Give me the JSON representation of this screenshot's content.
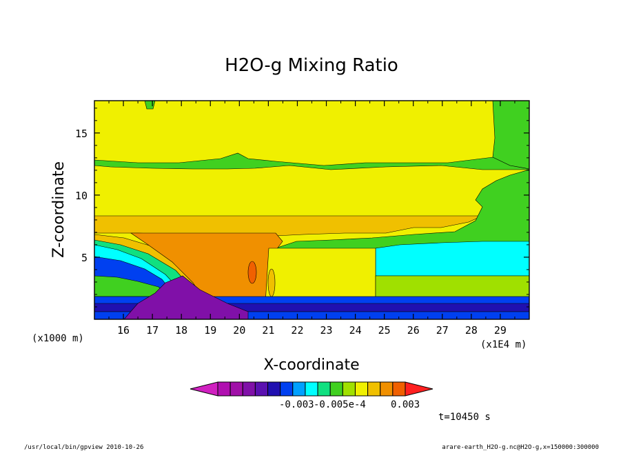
{
  "chart_data": {
    "type": "heatmap",
    "title": "H2O-g Mixing Ratio",
    "xlabel": "X-coordinate",
    "ylabel": "Z-coordinate",
    "x_unit_left": "(x1000 m)",
    "x_unit_right": "(x1E4 m)",
    "x_ticks": [
      "16",
      "17",
      "18",
      "19",
      "20",
      "21",
      "22",
      "23",
      "24",
      "25",
      "26",
      "27",
      "28",
      "29"
    ],
    "y_ticks": [
      "5",
      "10",
      "15"
    ],
    "xlim": [
      15.0,
      30.0
    ],
    "ylim": [
      0.0,
      17.6
    ],
    "grid": false,
    "colorbar": {
      "colors": [
        "#d020c0",
        "#b010b0",
        "#a010a8",
        "#8010a8",
        "#5a10b0",
        "#2010b0",
        "#0040f0",
        "#00a0ff",
        "#00ffff",
        "#10e080",
        "#40d020",
        "#a0e000",
        "#f0f000",
        "#f0c000",
        "#f09000",
        "#f06000",
        "#ff2020"
      ],
      "labels": [
        "-0.003",
        "-0.005e-4",
        "0.003"
      ]
    },
    "annotations": {
      "time": "t=10450 s",
      "footer_left": "/usr/local/bin/gpview  2010-10-26",
      "footer_right": "arare-earth_H2O-g.nc@H2O-g,x=150000:300000"
    }
  }
}
